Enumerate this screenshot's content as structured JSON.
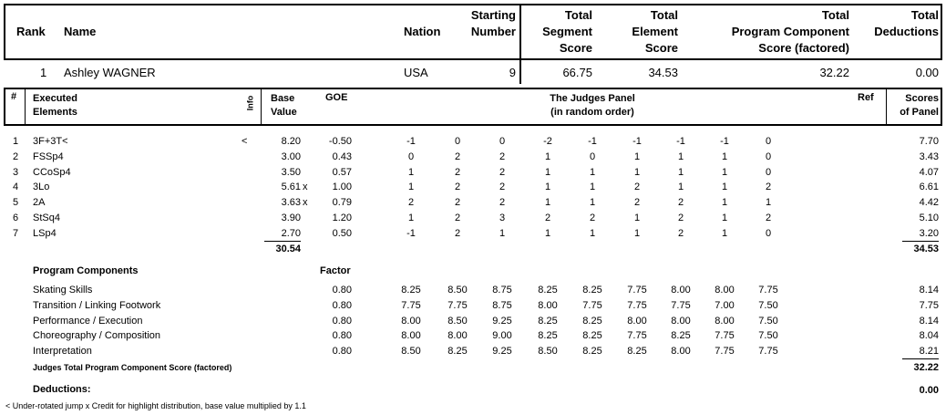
{
  "summary_header": {
    "rank": "Rank",
    "name": "Name",
    "nation": "Nation",
    "starting_number": [
      "Starting",
      "Number"
    ],
    "segment_score": [
      "Total",
      "Segment",
      "Score"
    ],
    "element_score": [
      "Total",
      "Element",
      "Score"
    ],
    "pcs": [
      "Total",
      "Program  Component",
      "Score (factored)"
    ],
    "deductions": [
      "Total",
      "Deductions"
    ]
  },
  "skater": {
    "rank": "1",
    "name": "Ashley WAGNER",
    "nation": "USA",
    "starting_number": "9",
    "segment_score": "66.75",
    "element_score": "34.53",
    "pcs": "32.22",
    "deductions": "0.00"
  },
  "elements_header": {
    "num": "#",
    "executed": [
      "Executed",
      "Elements"
    ],
    "info": "Info",
    "base": [
      "Base",
      "Value"
    ],
    "goe": "GOE",
    "panel": [
      "The Judges Panel",
      "(in random order)"
    ],
    "ref": "Ref",
    "scores": [
      "Scores",
      "of Panel"
    ]
  },
  "elements": [
    {
      "num": "1",
      "name": "3F+3T<",
      "info": "<",
      "base": "8.20",
      "x": "",
      "goe": "-0.50",
      "judges": [
        "-1",
        "0",
        "0",
        "-2",
        "-1",
        "-1",
        "-1",
        "-1",
        "0"
      ],
      "score": "7.70"
    },
    {
      "num": "2",
      "name": "FSSp4",
      "info": "",
      "base": "3.00",
      "x": "",
      "goe": "0.43",
      "judges": [
        "0",
        "2",
        "2",
        "1",
        "0",
        "1",
        "1",
        "1",
        "0"
      ],
      "score": "3.43"
    },
    {
      "num": "3",
      "name": "CCoSp4",
      "info": "",
      "base": "3.50",
      "x": "",
      "goe": "0.57",
      "judges": [
        "1",
        "2",
        "2",
        "1",
        "1",
        "1",
        "1",
        "1",
        "0"
      ],
      "score": "4.07"
    },
    {
      "num": "4",
      "name": "3Lo",
      "info": "",
      "base": "5.61",
      "x": "x",
      "goe": "1.00",
      "judges": [
        "1",
        "2",
        "2",
        "1",
        "1",
        "2",
        "1",
        "1",
        "2"
      ],
      "score": "6.61"
    },
    {
      "num": "5",
      "name": "2A",
      "info": "",
      "base": "3.63",
      "x": "x",
      "goe": "0.79",
      "judges": [
        "2",
        "2",
        "2",
        "1",
        "1",
        "2",
        "2",
        "1",
        "1"
      ],
      "score": "4.42"
    },
    {
      "num": "6",
      "name": "StSq4",
      "info": "",
      "base": "3.90",
      "x": "",
      "goe": "1.20",
      "judges": [
        "1",
        "2",
        "3",
        "2",
        "2",
        "1",
        "2",
        "1",
        "2"
      ],
      "score": "5.10"
    },
    {
      "num": "7",
      "name": "LSp4",
      "info": "",
      "base": "2.70",
      "x": "",
      "goe": "0.50",
      "judges": [
        "-1",
        "2",
        "1",
        "1",
        "1",
        "1",
        "2",
        "1",
        "0"
      ],
      "score": "3.20"
    }
  ],
  "elements_total": {
    "base": "30.54",
    "score": "34.53"
  },
  "program_components": {
    "title": "Program Components",
    "factor_label": "Factor",
    "rows": [
      {
        "name": "Skating Skills",
        "factor": "0.80",
        "judges": [
          "8.25",
          "8.50",
          "8.75",
          "8.25",
          "8.25",
          "7.75",
          "8.00",
          "8.00",
          "7.75"
        ],
        "score": "8.14"
      },
      {
        "name": "Transition / Linking Footwork",
        "factor": "0.80",
        "judges": [
          "7.75",
          "7.75",
          "8.75",
          "8.00",
          "7.75",
          "7.75",
          "7.75",
          "7.00",
          "7.50"
        ],
        "score": "7.75"
      },
      {
        "name": "Performance / Execution",
        "factor": "0.80",
        "judges": [
          "8.00",
          "8.50",
          "9.25",
          "8.25",
          "8.25",
          "8.00",
          "8.00",
          "8.00",
          "7.50"
        ],
        "score": "8.14"
      },
      {
        "name": "Choreography / Composition",
        "factor": "0.80",
        "judges": [
          "8.00",
          "8.00",
          "9.00",
          "8.25",
          "8.25",
          "7.75",
          "8.25",
          "7.75",
          "7.50"
        ],
        "score": "8.04"
      },
      {
        "name": "Interpretation",
        "factor": "0.80",
        "judges": [
          "8.50",
          "8.25",
          "9.25",
          "8.50",
          "8.25",
          "8.25",
          "8.00",
          "7.75",
          "7.75"
        ],
        "score": "8.21"
      }
    ],
    "total_label": "Judges Total Program Component Score (factored)",
    "total": "32.22"
  },
  "deductions": {
    "label": "Deductions:",
    "value": "0.00"
  },
  "legend": "<  Under-rotated jump   x  Credit for highlight distribution, base value multiplied by 1.1"
}
